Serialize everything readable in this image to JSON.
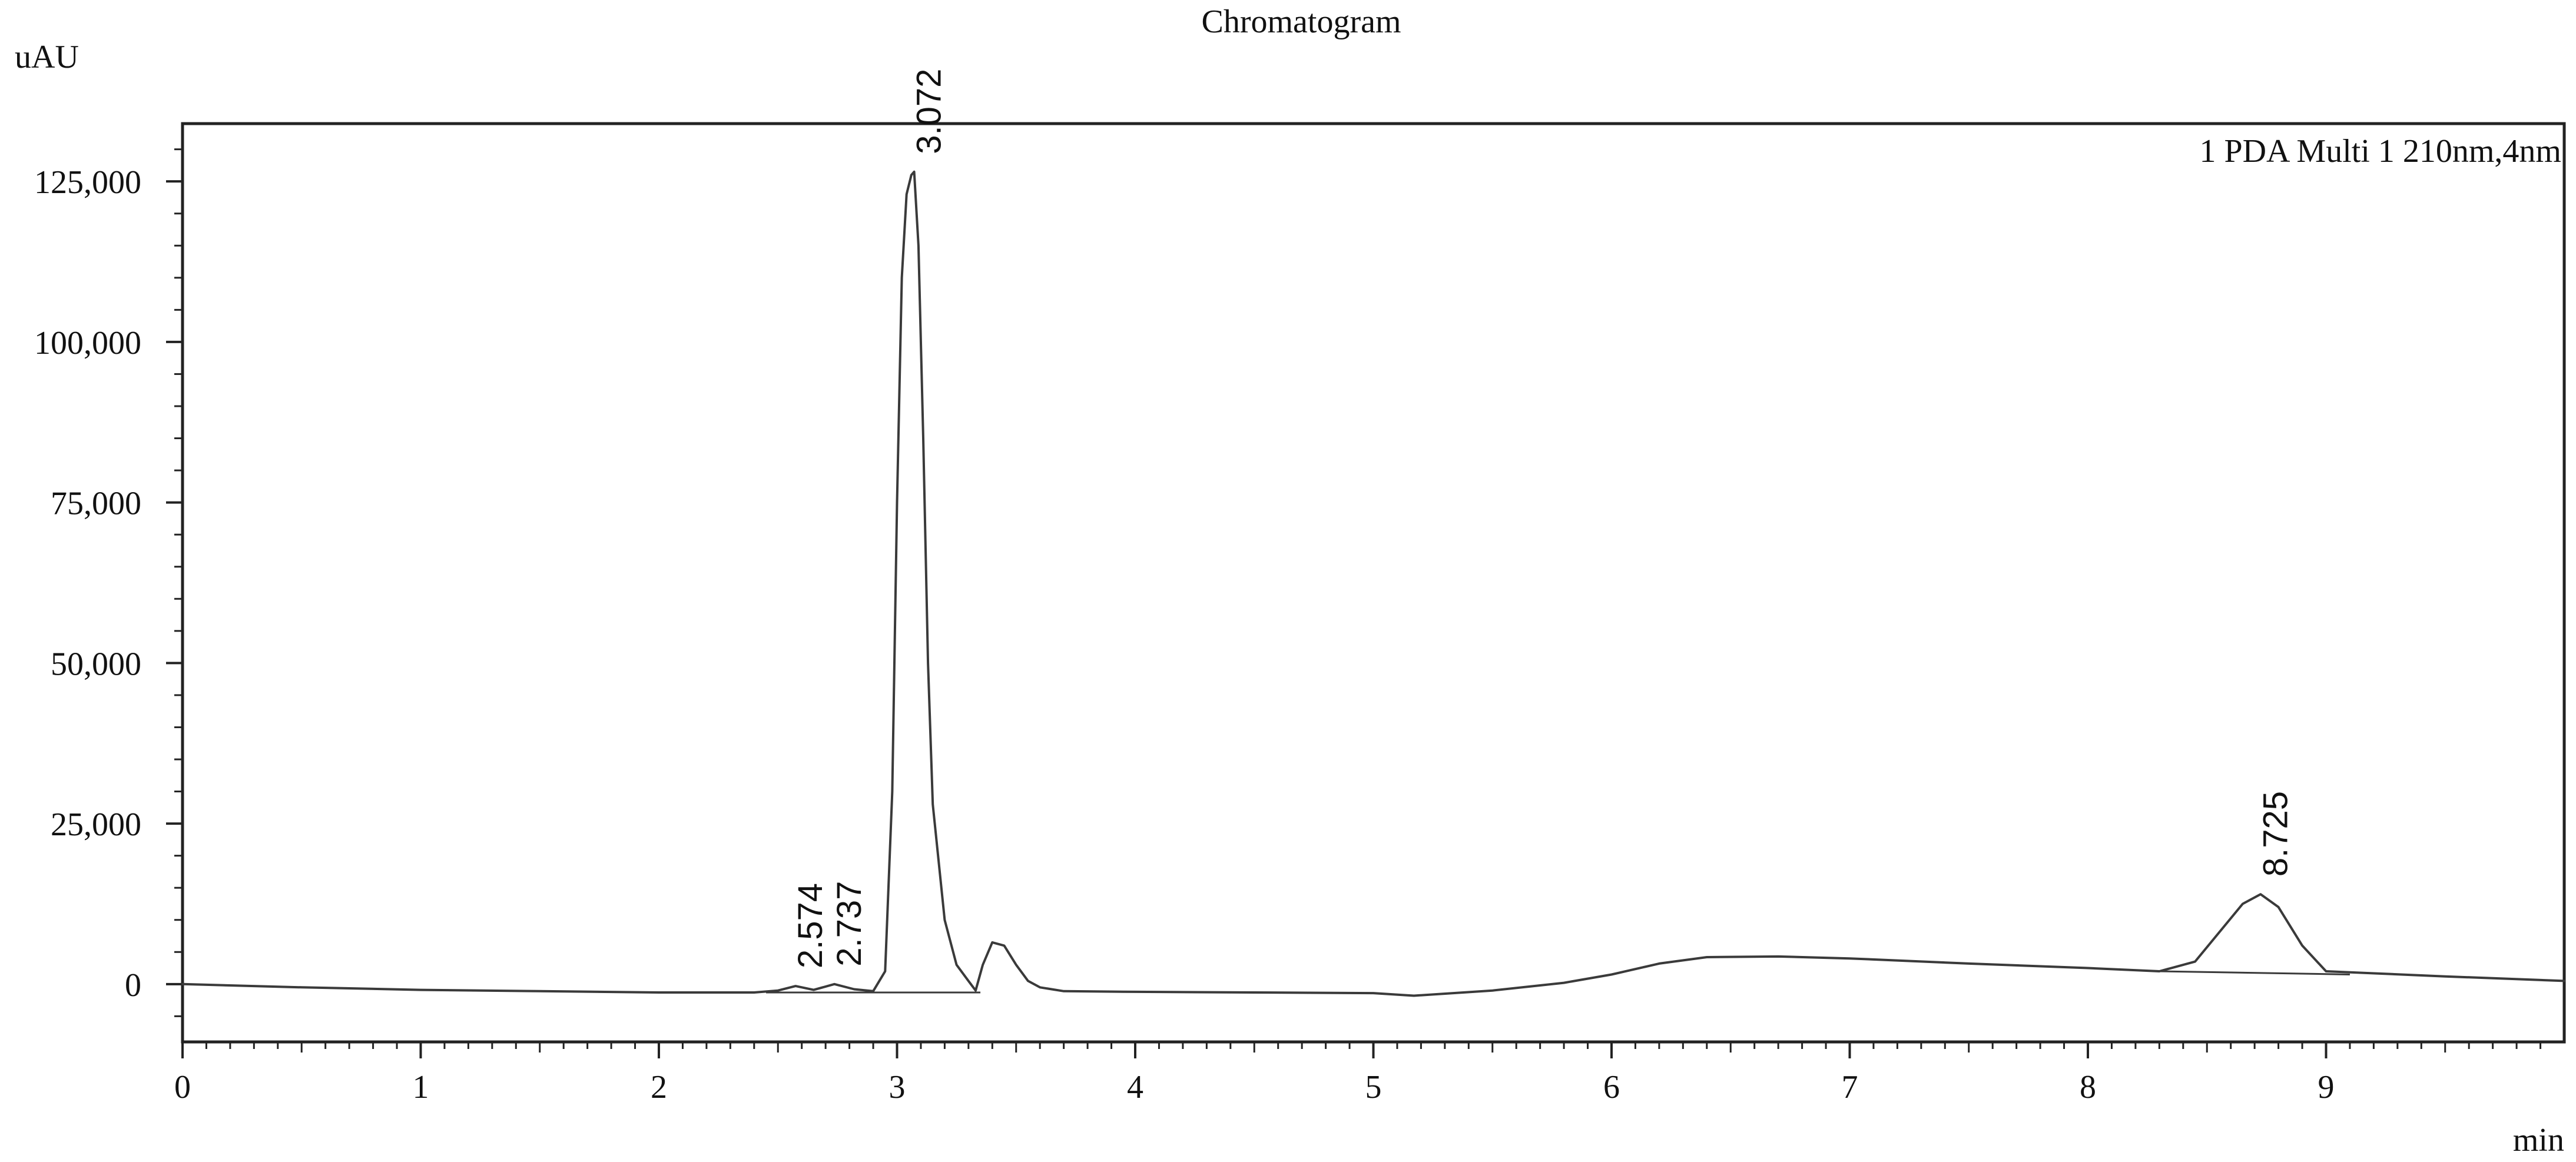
{
  "chart_data": {
    "type": "line",
    "title": "Chromatogram",
    "xlabel": "min",
    "ylabel": "uAU",
    "legend": "1 PDA Multi 1 210nm,4nm",
    "legend_position": "top-right",
    "xlim": [
      0,
      10
    ],
    "ylim": [
      -9000,
      134000
    ],
    "x_ticks": [
      0,
      1,
      2,
      3,
      4,
      5,
      6,
      7,
      8,
      9
    ],
    "x_tick_labels": [
      "0",
      "1",
      "2",
      "3",
      "4",
      "5",
      "6",
      "7",
      "8",
      "9"
    ],
    "y_ticks": [
      0,
      25000,
      50000,
      75000,
      100000,
      125000
    ],
    "y_tick_labels": [
      "0",
      "25,000",
      "50,000",
      "75,000",
      "100,000",
      "125,000"
    ],
    "grid": false,
    "series": [
      {
        "name": "1 PDA Multi 1 210nm,4nm",
        "x": [
          0,
          0.5,
          1,
          1.5,
          2,
          2.4,
          2.5,
          2.574,
          2.65,
          2.737,
          2.82,
          2.9,
          2.95,
          2.98,
          3.0,
          3.02,
          3.04,
          3.06,
          3.072,
          3.09,
          3.11,
          3.13,
          3.15,
          3.2,
          3.25,
          3.3,
          3.33,
          3.36,
          3.4,
          3.45,
          3.5,
          3.55,
          3.6,
          3.7,
          4,
          4.5,
          5,
          5.17,
          5.5,
          5.8,
          6,
          6.2,
          6.4,
          6.7,
          7,
          7.5,
          8,
          8.3,
          8.45,
          8.55,
          8.65,
          8.725,
          8.8,
          8.9,
          9.0,
          9.5,
          10
        ],
        "y": [
          0,
          -500,
          -900,
          -1100,
          -1300,
          -1300,
          -1000,
          -300,
          -900,
          0,
          -800,
          -1100,
          2000,
          30000,
          75000,
          110000,
          123000,
          126000,
          126500,
          115000,
          85000,
          50000,
          28000,
          10000,
          3000,
          500,
          -1000,
          3000,
          6500,
          6000,
          3000,
          500,
          -500,
          -1100,
          -1200,
          -1300,
          -1400,
          -1800,
          -1000,
          200,
          1500,
          3200,
          4200,
          4300,
          4000,
          3200,
          2500,
          2000,
          3500,
          8000,
          12500,
          14000,
          12000,
          6000,
          2000,
          1200,
          500
        ]
      }
    ],
    "peak_labels": [
      "2.574",
      "2.737",
      "3.072",
      "8.725"
    ],
    "peak_label_x": [
      2.574,
      2.737,
      3.072,
      8.725
    ],
    "peak_label_y": [
      -300,
      0,
      126500,
      14000
    ]
  }
}
